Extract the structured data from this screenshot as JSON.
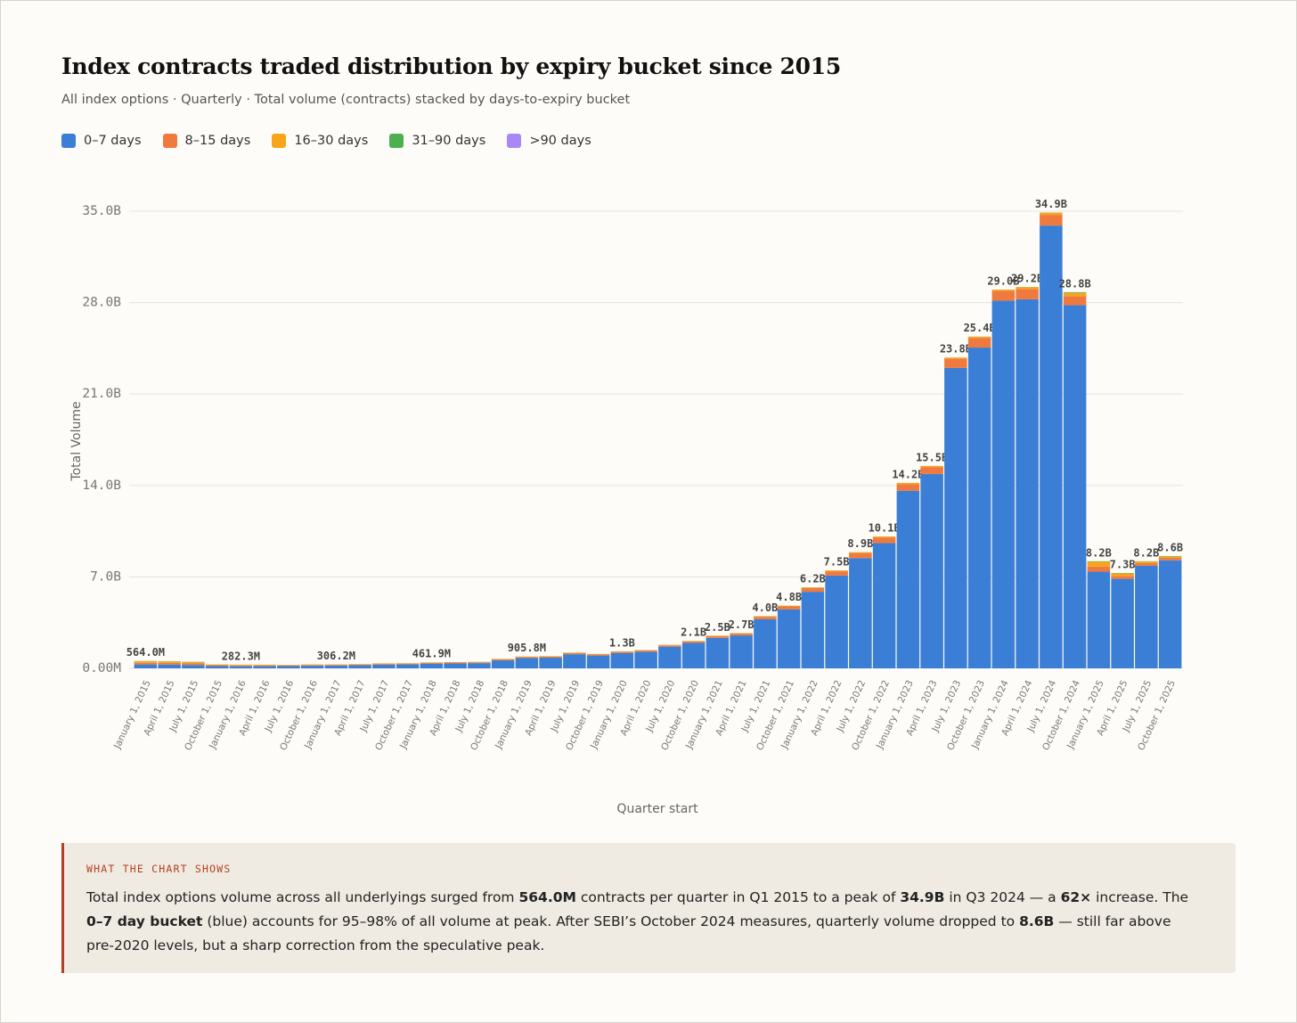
{
  "chart_data": {
    "type": "stacked-bar",
    "title": "Index contracts traded distribution by expiry bucket since 2015",
    "subtitle": "All index options · Quarterly · Total volume (contracts) stacked by days-to-expiry bucket",
    "x_label": "Quarter start",
    "y_label": "Total Volume",
    "categories": [
      "January 1, 2015",
      "April 1, 2015",
      "July 1, 2015",
      "October 1, 2015",
      "January 1, 2016",
      "April 1, 2016",
      "July 1, 2016",
      "October 1, 2016",
      "January 1, 2017",
      "April 1, 2017",
      "July 1, 2017",
      "October 1, 2017",
      "January 1, 2018",
      "April 1, 2018",
      "July 1, 2018",
      "October 1, 2018",
      "January 1, 2019",
      "April 1, 2019",
      "July 1, 2019",
      "October 1, 2019",
      "January 1, 2020",
      "April 1, 2020",
      "July 1, 2020",
      "October 1, 2020",
      "January 1, 2021",
      "April 1, 2021",
      "July 1, 2021",
      "October 1, 2021",
      "January 1, 2022",
      "April 1, 2022",
      "July 1, 2022",
      "October 1, 2022",
      "January 1, 2023",
      "April 1, 2023",
      "July 1, 2023",
      "October 1, 2023",
      "January 1, 2024",
      "April 1, 2024",
      "July 1, 2024",
      "October 1, 2024",
      "January 1, 2025",
      "April 1, 2025",
      "July 1, 2025",
      "October 1, 2025"
    ],
    "series": [
      {
        "name": "0–7 days",
        "color": "#3a7fd5",
        "values": [
          300000000.0,
          290000000.0,
          260000000.0,
          170000000.0,
          160000000.0,
          165000000.0,
          170000000.0,
          200000000.0,
          210000000.0,
          235000000.0,
          280000000.0,
          300000000.0,
          360000000.0,
          380000000.0,
          400000000.0,
          610000000.0,
          790000000.0,
          815000000.0,
          1080000000.0,
          980000000.0,
          1175000000.0,
          1270000000.0,
          1660000000.0,
          1950000000.0,
          2330000000.0,
          2520000000.0,
          3760000000.0,
          4520000000.0,
          5860000000.0,
          7100000000.0,
          8440000000.0,
          9590000000.0,
          13600000000.0,
          14880000000.0,
          23000000000.0,
          24560000000.0,
          28150000000.0,
          28250000000.0,
          33900000000.0,
          27800000000.0,
          7400000000.0,
          6850000000.0,
          7850000000.0,
          8270000000.0
        ]
      },
      {
        "name": "8–15 days",
        "color": "#f07a3e",
        "values": [
          130000000.0,
          130000000.0,
          120000000.0,
          70000000.0,
          65000000.0,
          62000000.0,
          55000000.0,
          55000000.0,
          54000000.0,
          55000000.0,
          58000000.0,
          58000000.0,
          60000000.0,
          60000000.0,
          60000000.0,
          70000000.0,
          75000000.0,
          75000000.0,
          80000000.0,
          80000000.0,
          85000000.0,
          90000000.0,
          100000000.0,
          110000000.0,
          125000000.0,
          135000000.0,
          190000000.0,
          225000000.0,
          280000000.0,
          330000000.0,
          385000000.0,
          430000000.0,
          510000000.0,
          530000000.0,
          700000000.0,
          740000000.0,
          750000000.0,
          800000000.0,
          820000000.0,
          700000000.0,
          400000000.0,
          220000000.0,
          200000000.0,
          200000000.0
        ]
      },
      {
        "name": "16–30 days",
        "color": "#f9a51b",
        "values": [
          110000000.0,
          110000000.0,
          100000000.0,
          50000000.0,
          48000000.0,
          45000000.0,
          38000000.0,
          38000000.0,
          35000000.0,
          33000000.0,
          35000000.0,
          35000000.0,
          35000000.0,
          34000000.0,
          34000000.0,
          34000000.0,
          35000000.0,
          34000000.0,
          34000000.0,
          34000000.0,
          34000000.0,
          34000000.0,
          34000000.0,
          34000000.0,
          39000000.0,
          39000000.0,
          44000000.0,
          49000000.0,
          54000000.0,
          64000000.0,
          69000000.0,
          74000000.0,
          84000000.0,
          84000000.0,
          94000000.0,
          94000000.0,
          94000000.0,
          140000000.0,
          170000000.0,
          250000000.0,
          360000000.0,
          200000000.0,
          120000000.0,
          100000000.0
        ]
      },
      {
        "name": "31–90 days",
        "color": "#4caf50",
        "values": [
          20000000.0,
          17000000.0,
          17000000.0,
          8000000.0,
          8000000.0,
          7000000.0,
          6000000.0,
          6000000.0,
          6000000.0,
          6000000.0,
          6000000.0,
          6000000.0,
          6000000.0,
          5000000.0,
          5000000.0,
          5000000.0,
          5000000.0,
          5000000.0,
          5000000.0,
          5000000.0,
          5000000.0,
          5000000.0,
          5000000.0,
          5000000.0,
          5000000.0,
          5000000.0,
          5000000.0,
          5000000.0,
          5000000.0,
          5000000.0,
          5000000.0,
          5000000.0,
          5000000.0,
          5000000.0,
          5000000.0,
          5000000.0,
          5000000.0,
          9000000.0,
          9000000.0,
          49000000.0,
          39000000.0,
          29000000.0,
          29000000.0,
          29000000.0
        ]
      },
      {
        "name": ">90 days",
        "color": "#a887f7",
        "values": [
          4000000.0,
          3000000.0,
          3000000.0,
          2000000.0,
          1300000.0,
          1000000.0,
          1000000.0,
          1000000.0,
          1200000.0,
          1000000.0,
          1000000.0,
          1000000.0,
          900000.0,
          1000000.0,
          1000000.0,
          1000000.0,
          800000.0,
          1000000.0,
          1000000.0,
          1000000.0,
          1000000.0,
          1000000.0,
          1000000.0,
          1000000.0,
          1000000.0,
          1000000.0,
          1000000.0,
          1000000.0,
          1000000.0,
          1000000.0,
          1000000.0,
          1000000.0,
          1000000.0,
          1000000.0,
          1000000.0,
          1000000.0,
          1000000.0,
          1000000.0,
          1000000.0,
          1000000.0,
          1000000.0,
          1000000.0,
          1000000.0,
          1000000.0
        ]
      }
    ],
    "totals": [
      564000000.0,
      null,
      null,
      null,
      282300000.0,
      null,
      null,
      null,
      306200000.0,
      null,
      null,
      null,
      461900000.0,
      null,
      null,
      null,
      905800000.0,
      null,
      null,
      null,
      1300000000.0,
      null,
      null,
      2100000000.0,
      2500000000.0,
      2700000000.0,
      4000000000.0,
      4800000000.0,
      6200000000.0,
      7500000000.0,
      8900000000.0,
      10100000000.0,
      14200000000.0,
      15500000000.0,
      23800000000.0,
      25400000000.0,
      29000000000.0,
      29200000000.0,
      34900000000.0,
      28800000000.0,
      8200000000.0,
      7300000000.0,
      8200000000.0,
      8600000000.0
    ],
    "total_labels": [
      "564.0M",
      null,
      null,
      null,
      "282.3M",
      null,
      null,
      null,
      "306.2M",
      null,
      null,
      null,
      "461.9M",
      null,
      null,
      null,
      "905.8M",
      null,
      null,
      null,
      "1.3B",
      null,
      null,
      "2.1B",
      "2.5B",
      "2.7B",
      "4.0B",
      "4.8B",
      "6.2B",
      "7.5B",
      "8.9B",
      "10.1B",
      "14.2B",
      "15.5B",
      "23.8B",
      "25.4B",
      "29.0B",
      "29.2B",
      "34.9B",
      "28.8B",
      "8.2B",
      "7.3B",
      "8.2B",
      "8.6B"
    ],
    "ylim": [
      0,
      35000000000.0
    ],
    "yticks": [
      {
        "value": 0,
        "label": "0.00M"
      },
      {
        "value": 7000000000.0,
        "label": "7.0B"
      },
      {
        "value": 14000000000.0,
        "label": "14.0B"
      },
      {
        "value": 21000000000.0,
        "label": "21.0B"
      },
      {
        "value": 28000000000.0,
        "label": "28.0B"
      },
      {
        "value": 35000000000.0,
        "label": "35.0B"
      }
    ],
    "grid": true
  },
  "callout": {
    "heading": "WHAT THE CHART SHOWS",
    "body": [
      {
        "text": "Total index options volume across all underlyings surged from ",
        "bold": false
      },
      {
        "text": "564.0M",
        "bold": true
      },
      {
        "text": " contracts per quarter in Q1 2015 to a peak of ",
        "bold": false
      },
      {
        "text": "34.9B",
        "bold": true
      },
      {
        "text": " in Q3 2024 — a ",
        "bold": false
      },
      {
        "text": "62×",
        "bold": true
      },
      {
        "text": " increase. The ",
        "bold": false
      },
      {
        "text": "0–7 day bucket",
        "bold": true
      },
      {
        "text": " (blue) accounts for 95–98% of all volume at peak. After SEBI’s October 2024 measures, quarterly volume dropped to ",
        "bold": false
      },
      {
        "text": "8.6B",
        "bold": true
      },
      {
        "text": " — still far above pre-2020 levels, but a sharp correction from the speculative peak.",
        "bold": false
      }
    ]
  }
}
